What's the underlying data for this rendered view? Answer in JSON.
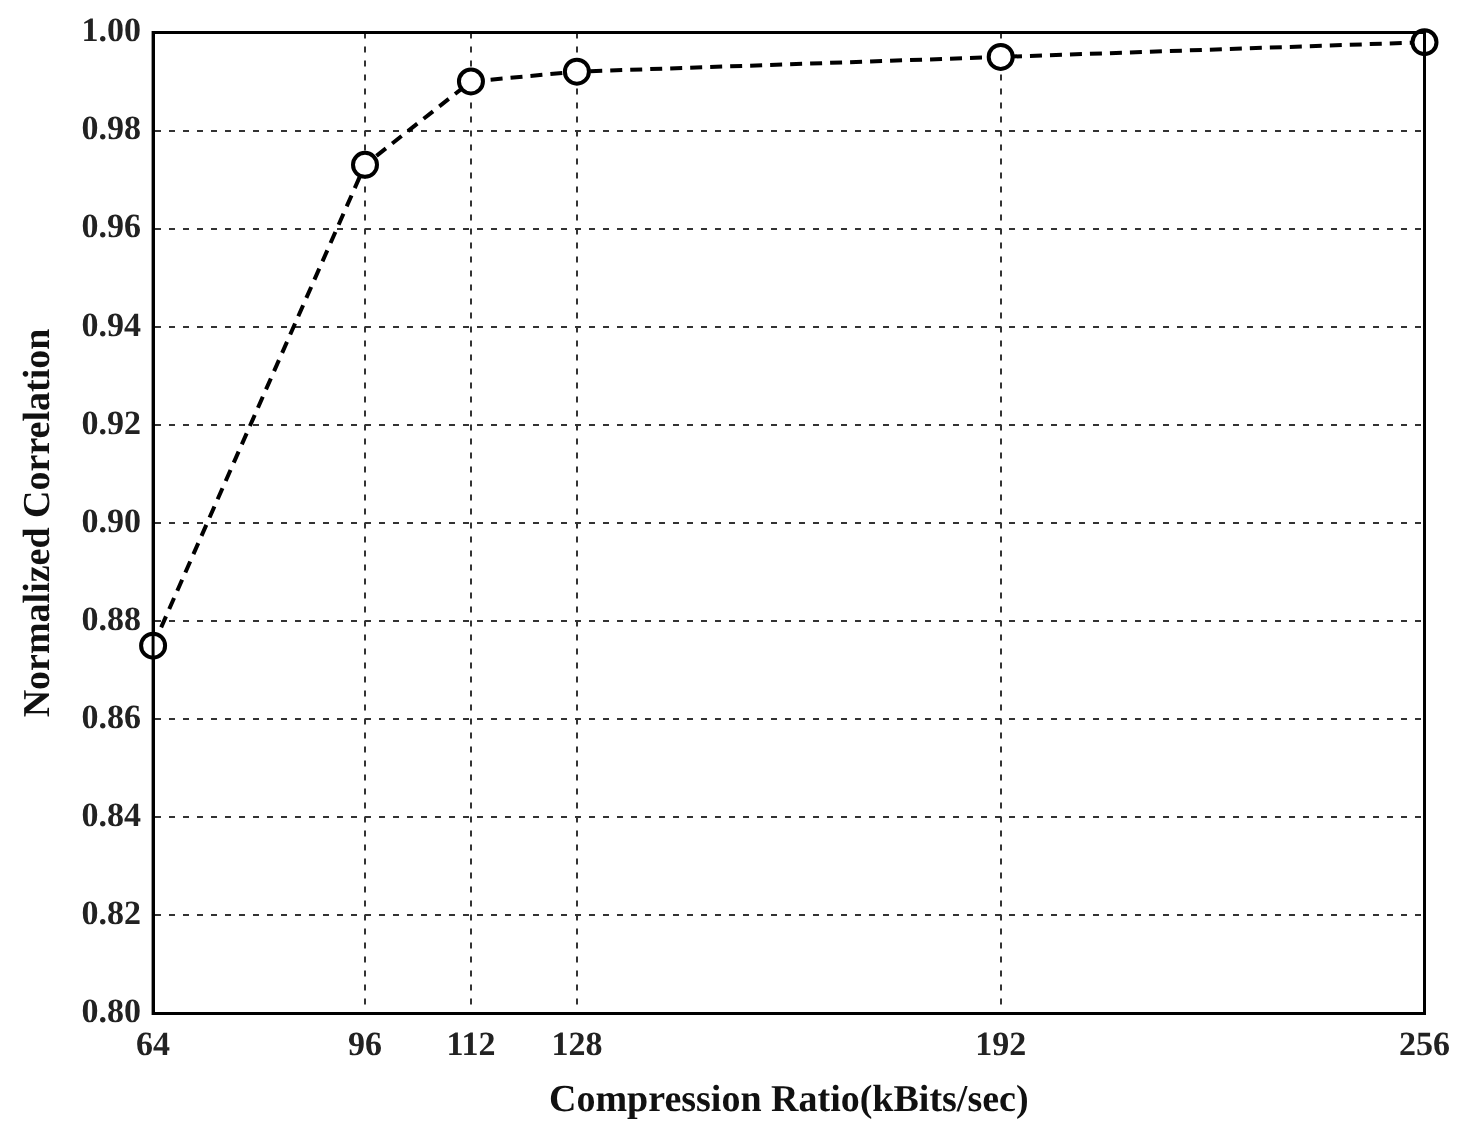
{
  "chart_data": {
    "type": "line",
    "xlabel": "Compression Ratio(kBits/sec)",
    "ylabel": "Normalized Correlation",
    "x": [
      64,
      96,
      112,
      128,
      192,
      256
    ],
    "series": [
      {
        "color": "#000000",
        "values": [
          0.875,
          0.973,
          0.99,
          0.992,
          0.995,
          0.998
        ]
      }
    ],
    "xlim": [
      64,
      256
    ],
    "xticks": [
      64,
      96,
      112,
      128,
      192,
      256
    ],
    "ylim": [
      0.8,
      1.0
    ],
    "yticks": [
      {
        "value": 0.8,
        "label": "0.80"
      },
      {
        "value": 0.82,
        "label": "0.82"
      },
      {
        "value": 0.84,
        "label": "0.84"
      },
      {
        "value": 0.86,
        "label": "0.86"
      },
      {
        "value": 0.88,
        "label": "0.88"
      },
      {
        "value": 0.9,
        "label": "0.90"
      },
      {
        "value": 0.92,
        "label": "0.92"
      },
      {
        "value": 0.94,
        "label": "0.94"
      },
      {
        "value": 0.96,
        "label": "0.96"
      },
      {
        "value": 0.98,
        "label": "0.98"
      },
      {
        "value": 1.0,
        "label": "1.00"
      }
    ],
    "grid": true,
    "marker": "circle",
    "line_style": "dashed",
    "legend": false
  }
}
